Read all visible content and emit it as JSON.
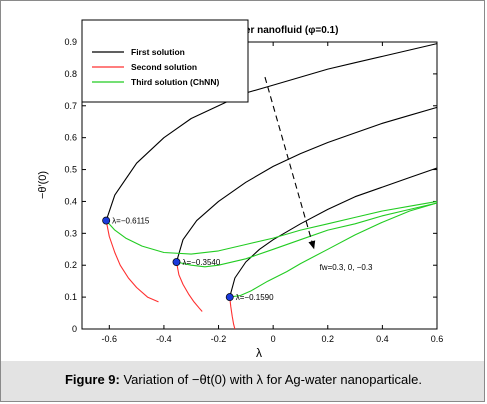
{
  "chart_data": {
    "type": "line",
    "title": "Ag-water nanofluid",
    "title_param": "(φ=0.1)",
    "xlabel": "λ",
    "ylabel": "−θ′(0)",
    "xlim": [
      -0.7,
      0.6
    ],
    "ylim": [
      0,
      0.9
    ],
    "xticks": [
      "-0.6",
      "-0.4",
      "-0.2",
      "0",
      "0.2",
      "0.4",
      "0.6"
    ],
    "yticks": [
      "0",
      "0.1",
      "0.2",
      "0.3",
      "0.4",
      "0.5",
      "0.6",
      "0.7",
      "0.8",
      "0.9"
    ],
    "xtick_values": [
      -0.6,
      -0.4,
      -0.2,
      0,
      0.2,
      0.4,
      0.6
    ],
    "ytick_values": [
      0,
      0.1,
      0.2,
      0.3,
      0.4,
      0.5,
      0.6,
      0.7,
      0.8,
      0.9
    ],
    "grid": false,
    "legend_position": "top-left",
    "legend": [
      {
        "label": "First solution",
        "color": "#000000"
      },
      {
        "label": "Second solution",
        "color": "#ff3030"
      },
      {
        "label": "Third solution (ChNN)",
        "color": "#22cc22"
      }
    ],
    "series": [
      {
        "role": "first",
        "color": "#000000",
        "points": [
          [
            -0.6115,
            0.34
          ],
          [
            -0.58,
            0.42
          ],
          [
            -0.5,
            0.52
          ],
          [
            -0.4,
            0.6
          ],
          [
            -0.3,
            0.66
          ],
          [
            -0.2,
            0.7
          ],
          [
            -0.1,
            0.74
          ],
          [
            0.0,
            0.765
          ],
          [
            0.1,
            0.79
          ],
          [
            0.2,
            0.815
          ],
          [
            0.3,
            0.835
          ],
          [
            0.4,
            0.855
          ],
          [
            0.5,
            0.875
          ],
          [
            0.6,
            0.895
          ]
        ]
      },
      {
        "role": "first",
        "color": "#000000",
        "points": [
          [
            -0.354,
            0.21
          ],
          [
            -0.33,
            0.28
          ],
          [
            -0.28,
            0.34
          ],
          [
            -0.2,
            0.4
          ],
          [
            -0.1,
            0.46
          ],
          [
            0.0,
            0.51
          ],
          [
            0.1,
            0.55
          ],
          [
            0.2,
            0.585
          ],
          [
            0.3,
            0.615
          ],
          [
            0.4,
            0.645
          ],
          [
            0.5,
            0.67
          ],
          [
            0.6,
            0.695
          ]
        ]
      },
      {
        "role": "first",
        "color": "#000000",
        "points": [
          [
            -0.159,
            0.1
          ],
          [
            -0.14,
            0.16
          ],
          [
            -0.1,
            0.21
          ],
          [
            -0.05,
            0.25
          ],
          [
            0.0,
            0.28
          ],
          [
            0.1,
            0.33
          ],
          [
            0.2,
            0.375
          ],
          [
            0.3,
            0.415
          ],
          [
            0.4,
            0.445
          ],
          [
            0.5,
            0.475
          ],
          [
            0.6,
            0.505
          ]
        ]
      },
      {
        "role": "second",
        "color": "#ff3030",
        "points": [
          [
            -0.6115,
            0.34
          ],
          [
            -0.6,
            0.29
          ],
          [
            -0.58,
            0.24
          ],
          [
            -0.56,
            0.2
          ],
          [
            -0.53,
            0.16
          ],
          [
            -0.5,
            0.13
          ],
          [
            -0.46,
            0.1
          ],
          [
            -0.42,
            0.085
          ]
        ]
      },
      {
        "role": "second",
        "color": "#ff3030",
        "points": [
          [
            -0.354,
            0.21
          ],
          [
            -0.345,
            0.17
          ],
          [
            -0.33,
            0.14
          ],
          [
            -0.31,
            0.11
          ],
          [
            -0.29,
            0.085
          ],
          [
            -0.27,
            0.065
          ],
          [
            -0.26,
            0.055
          ]
        ]
      },
      {
        "role": "second",
        "color": "#ff3030",
        "points": [
          [
            -0.159,
            0.1
          ],
          [
            -0.155,
            0.07
          ],
          [
            -0.15,
            0.04
          ],
          [
            -0.145,
            0.015
          ],
          [
            -0.14,
            0.0
          ]
        ]
      },
      {
        "role": "third",
        "color": "#22cc22",
        "points": [
          [
            -0.6115,
            0.34
          ],
          [
            -0.58,
            0.31
          ],
          [
            -0.54,
            0.285
          ],
          [
            -0.48,
            0.26
          ],
          [
            -0.4,
            0.24
          ],
          [
            -0.3,
            0.235
          ],
          [
            -0.2,
            0.245
          ],
          [
            -0.1,
            0.265
          ],
          [
            0.0,
            0.285
          ],
          [
            0.1,
            0.31
          ],
          [
            0.2,
            0.33
          ],
          [
            0.3,
            0.35
          ],
          [
            0.4,
            0.37
          ],
          [
            0.5,
            0.385
          ],
          [
            0.6,
            0.4
          ]
        ]
      },
      {
        "role": "third",
        "color": "#22cc22",
        "points": [
          [
            -0.354,
            0.21
          ],
          [
            -0.3,
            0.2
          ],
          [
            -0.25,
            0.195
          ],
          [
            -0.2,
            0.2
          ],
          [
            -0.1,
            0.22
          ],
          [
            0.0,
            0.25
          ],
          [
            0.1,
            0.28
          ],
          [
            0.2,
            0.31
          ],
          [
            0.3,
            0.33
          ],
          [
            0.4,
            0.355
          ],
          [
            0.5,
            0.375
          ],
          [
            0.6,
            0.395
          ]
        ]
      },
      {
        "role": "third",
        "color": "#22cc22",
        "points": [
          [
            -0.159,
            0.1
          ],
          [
            -0.12,
            0.105
          ],
          [
            -0.08,
            0.12
          ],
          [
            -0.02,
            0.15
          ],
          [
            0.05,
            0.18
          ],
          [
            0.1,
            0.205
          ],
          [
            0.2,
            0.25
          ],
          [
            0.3,
            0.295
          ],
          [
            0.4,
            0.335
          ],
          [
            0.5,
            0.37
          ],
          [
            0.6,
            0.395
          ]
        ]
      }
    ],
    "critical_points": [
      {
        "x": -0.6115,
        "y": 0.34,
        "label": "λ=−0.6115"
      },
      {
        "x": -0.354,
        "y": 0.21,
        "label": "λ=−0.3540"
      },
      {
        "x": -0.159,
        "y": 0.1,
        "label": "λ=−0.1590"
      }
    ],
    "annotation_arrow": {
      "from": [
        -0.03,
        0.79
      ],
      "to": [
        0.15,
        0.25
      ]
    },
    "annotation": {
      "text": "fw=0.3,  0, −0.3",
      "x": 0.17,
      "y": 0.185
    }
  },
  "caption": {
    "prefix": "Figure 9:",
    "text": " Variation of −θt(0) with λ for Ag-water nanoparticale."
  }
}
